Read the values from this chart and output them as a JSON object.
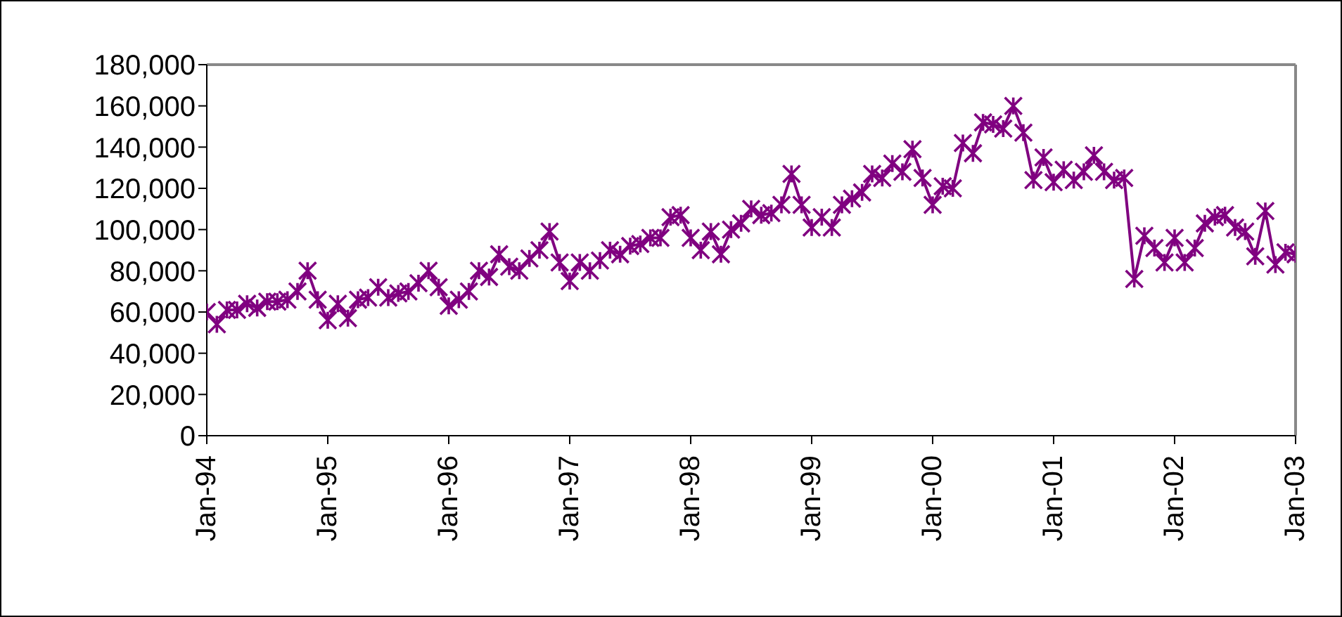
{
  "chart_data": {
    "type": "line",
    "x": [
      "1994-01",
      "1994-02",
      "1994-03",
      "1994-04",
      "1994-05",
      "1994-06",
      "1994-07",
      "1994-08",
      "1994-09",
      "1994-10",
      "1994-11",
      "1994-12",
      "1995-01",
      "1995-02",
      "1995-03",
      "1995-04",
      "1995-05",
      "1995-06",
      "1995-07",
      "1995-08",
      "1995-09",
      "1995-10",
      "1995-11",
      "1995-12",
      "1996-01",
      "1996-02",
      "1996-03",
      "1996-04",
      "1996-05",
      "1996-06",
      "1996-07",
      "1996-08",
      "1996-09",
      "1996-10",
      "1996-11",
      "1996-12",
      "1997-01",
      "1997-02",
      "1997-03",
      "1997-04",
      "1997-05",
      "1997-06",
      "1997-07",
      "1997-08",
      "1997-09",
      "1997-10",
      "1997-11",
      "1997-12",
      "1998-01",
      "1998-02",
      "1998-03",
      "1998-04",
      "1998-05",
      "1998-06",
      "1998-07",
      "1998-08",
      "1998-09",
      "1998-10",
      "1998-11",
      "1998-12",
      "1999-01",
      "1999-02",
      "1999-03",
      "1999-04",
      "1999-05",
      "1999-06",
      "1999-07",
      "1999-08",
      "1999-09",
      "1999-10",
      "1999-11",
      "1999-12",
      "2000-01",
      "2000-02",
      "2000-03",
      "2000-04",
      "2000-05",
      "2000-06",
      "2000-07",
      "2000-08",
      "2000-09",
      "2000-10",
      "2000-11",
      "2000-12",
      "2001-01",
      "2001-02",
      "2001-03",
      "2001-04",
      "2001-05",
      "2001-06",
      "2001-07",
      "2001-08",
      "2001-09",
      "2001-10",
      "2001-11",
      "2001-12",
      "2002-01",
      "2002-02",
      "2002-03",
      "2002-04",
      "2002-05",
      "2002-06",
      "2002-07",
      "2002-08",
      "2002-09",
      "2002-10",
      "2002-11",
      "2002-12",
      "2003-01"
    ],
    "series": [
      {
        "color": "#800080",
        "values": [
          60000,
          54000,
          61000,
          61000,
          64000,
          62000,
          65000,
          65000,
          66000,
          70000,
          80000,
          66000,
          56000,
          64000,
          57000,
          66000,
          67000,
          72000,
          67000,
          69000,
          70000,
          74000,
          80000,
          72000,
          63000,
          66000,
          70000,
          80000,
          77000,
          88000,
          82000,
          80000,
          86000,
          90000,
          99000,
          84000,
          75000,
          84000,
          80000,
          85000,
          90000,
          88000,
          92000,
          93000,
          96000,
          96000,
          106000,
          107000,
          96000,
          90000,
          99000,
          88000,
          100000,
          103000,
          110000,
          107000,
          108000,
          112000,
          127000,
          112000,
          101000,
          106000,
          101000,
          112000,
          115000,
          118000,
          127000,
          125000,
          132000,
          128000,
          139000,
          125000,
          112000,
          121000,
          120000,
          142000,
          137000,
          152000,
          151000,
          149000,
          160000,
          147000,
          124000,
          135000,
          123000,
          129000,
          124000,
          128000,
          136000,
          128000,
          124000,
          125000,
          76000,
          97000,
          91000,
          84000,
          96000,
          84000,
          91000,
          103000,
          106000,
          107000,
          101000,
          99000,
          87000,
          109000,
          83000,
          89000,
          88000
        ]
      }
    ],
    "ylim": [
      0,
      180000
    ],
    "yticks": [
      {
        "value": 0,
        "label": "0"
      },
      {
        "value": 20000,
        "label": "20,000"
      },
      {
        "value": 40000,
        "label": "40,000"
      },
      {
        "value": 60000,
        "label": "60,000"
      },
      {
        "value": 80000,
        "label": "80,000"
      },
      {
        "value": 100000,
        "label": "100,000"
      },
      {
        "value": 120000,
        "label": "120,000"
      },
      {
        "value": 140000,
        "label": "140,000"
      },
      {
        "value": 160000,
        "label": "160,000"
      },
      {
        "value": 180000,
        "label": "180,000"
      }
    ],
    "xlim": [
      "1994-01",
      "2003-01"
    ],
    "xticks": [
      {
        "value": "1994-01",
        "label": "Jan-94"
      },
      {
        "value": "1995-01",
        "label": "Jan-95"
      },
      {
        "value": "1996-01",
        "label": "Jan-96"
      },
      {
        "value": "1997-01",
        "label": "Jan-97"
      },
      {
        "value": "1998-01",
        "label": "Jan-98"
      },
      {
        "value": "1999-01",
        "label": "Jan-99"
      },
      {
        "value": "2000-01",
        "label": "Jan-00"
      },
      {
        "value": "2001-01",
        "label": "Jan-01"
      },
      {
        "value": "2002-01",
        "label": "Jan-02"
      },
      {
        "value": "2003-01",
        "label": "Jan-03"
      }
    ],
    "marker": "cross",
    "grid": false,
    "legend": false
  }
}
